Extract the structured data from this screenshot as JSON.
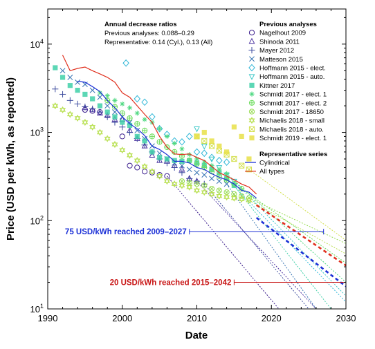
{
  "chart_data": {
    "type": "scatter",
    "xlabel": "Date",
    "ylabel": "Price (USD per kWh, as reported)",
    "xlim": [
      1990,
      2030
    ],
    "ylim": [
      10,
      25000
    ],
    "y_scale": "log",
    "x_ticks": [
      "1990",
      "2000",
      "2010",
      "2020",
      "2030"
    ],
    "y_ticks": [
      {
        "value": 10,
        "base": "10",
        "exp": "1"
      },
      {
        "value": 100,
        "base": "10",
        "exp": "2"
      },
      {
        "value": 1000,
        "base": "10",
        "exp": "3"
      },
      {
        "value": 10000,
        "base": "10",
        "exp": "4"
      }
    ],
    "annotation": {
      "title": "Annual decrease ratios",
      "line1": "Previous analyses: 0.088–0.29",
      "line2": "Representative: 0.14 (Cyl.), 0.13 (All)"
    },
    "legend": {
      "placement": "top-right",
      "previous_title": "Previous analyses",
      "representative_title": "Representative series",
      "previous": [
        {
          "name": "Nagelhout 2009",
          "marker": "circle",
          "color": "#3a1c8c"
        },
        {
          "name": "Shinoda 2011",
          "marker": "triangle",
          "color": "#472d9e"
        },
        {
          "name": "Mayer 2012",
          "marker": "plus",
          "color": "#3b4a9e"
        },
        {
          "name": "Matteson 2015",
          "marker": "x",
          "color": "#2f6fb0"
        },
        {
          "name": "Hoffmann 2015 - elect.",
          "marker": "diamond",
          "color": "#33b8d8"
        },
        {
          "name": "Hoffmann 2015 - auto.",
          "marker": "tri-down",
          "color": "#3cc8c8"
        },
        {
          "name": "Kittner 2017",
          "marker": "square",
          "color": "#3fd0a8"
        },
        {
          "name": "Schmidt 2017 - elect. 1",
          "marker": "asterisk",
          "color": "#4ed880"
        },
        {
          "name": "Schmidt 2017 - elect. 2",
          "marker": "circle-plus",
          "color": "#6cdc5c"
        },
        {
          "name": "Schmidt 2017 - 18650",
          "marker": "circle-x",
          "color": "#96dc50"
        },
        {
          "name": "Michaelis 2018 - small",
          "marker": "star6",
          "color": "#b8e050"
        },
        {
          "name": "Michaelis 2018 - auto.",
          "marker": "square-x",
          "color": "#d4e050"
        },
        {
          "name": "Schmidt 2019 - elect. 1",
          "marker": "square",
          "color": "#e8e048"
        }
      ],
      "representative": [
        {
          "name": "Cylindrical",
          "color": "#1a2fd6"
        },
        {
          "name": "All types",
          "color": "#e0301e"
        }
      ]
    },
    "range_labels": [
      {
        "text": "75 USD/kWh reached 2009–2027",
        "color": "#1a2fd6",
        "y": 75,
        "x_from": 2009,
        "x_to": 2027
      },
      {
        "text": "20 USD/kWh reached 2015–2042",
        "color": "#c81414",
        "y": 20,
        "x_from": 2015,
        "x_to": 2030
      }
    ],
    "series": [
      {
        "name": "Cylindrical",
        "color": "#1a2fd6",
        "x": [
          1994,
          1995,
          1996,
          1997,
          1998,
          1999,
          2000,
          2001,
          2002,
          2003,
          2004,
          2005,
          2006,
          2007,
          2008,
          2009,
          2010,
          2011,
          2012,
          2013,
          2014,
          2015,
          2016,
          2017,
          2018
        ],
        "y": [
          3800,
          3700,
          3300,
          2900,
          2300,
          1900,
          1500,
          1250,
          1100,
          920,
          700,
          640,
          560,
          470,
          470,
          450,
          400,
          380,
          340,
          310,
          290,
          260,
          220,
          210,
          180
        ]
      },
      {
        "name": "All types",
        "color": "#e0301e",
        "x": [
          1992,
          1993,
          1994,
          1995,
          1996,
          1997,
          1998,
          1999,
          2000,
          2001,
          2002,
          2003,
          2004,
          2005,
          2006,
          2007,
          2008,
          2009,
          2010,
          2011,
          2012,
          2013,
          2014,
          2015,
          2016,
          2017,
          2018
        ],
        "y": [
          7500,
          5000,
          5300,
          5500,
          5000,
          4600,
          4200,
          3700,
          2800,
          2500,
          2000,
          1600,
          1300,
          900,
          680,
          570,
          560,
          570,
          520,
          480,
          410,
          350,
          320,
          290,
          260,
          240,
          200
        ]
      },
      {
        "name": "Cylindrical projection",
        "color": "#1a2fd6",
        "dashed": true,
        "x": [
          2018,
          2030
        ],
        "y": [
          108,
          18
        ]
      },
      {
        "name": "All types projection",
        "color": "#e0301e",
        "dashed": true,
        "x": [
          2018,
          2030
        ],
        "y": [
          150,
          31
        ]
      },
      {
        "name": "Nagelhout 2009",
        "color": "#3a1c8c",
        "marker": "circle",
        "x": [
          1995,
          1996,
          1997,
          2000,
          2001,
          2002,
          2003,
          2004,
          2005,
          2006
        ],
        "y": [
          1800,
          1750,
          1700,
          900,
          420,
          400,
          360,
          350,
          330,
          320
        ]
      },
      {
        "name": "Shinoda 2011",
        "color": "#472d9e",
        "marker": "triangle",
        "x": [
          1995,
          1996,
          1997,
          1998,
          1999,
          2000,
          2001,
          2002,
          2003,
          2004,
          2005,
          2006,
          2007,
          2008,
          2009,
          2010
        ],
        "y": [
          1900,
          1800,
          1650,
          1550,
          1400,
          1400,
          1050,
          850,
          700,
          550,
          480,
          470,
          420,
          380,
          300,
          280
        ]
      },
      {
        "name": "Mayer 2012",
        "color": "#3b4a9e",
        "marker": "plus",
        "x": [
          1991,
          1992,
          1993,
          1994,
          1995,
          1996,
          1997,
          1998,
          1999,
          2000,
          2001,
          2002,
          2003,
          2004,
          2005,
          2006,
          2007,
          2008,
          2009,
          2010,
          2011
        ],
        "y": [
          3100,
          2700,
          2300,
          2100,
          1950,
          1850,
          1700,
          1500,
          1300,
          1150,
          1000,
          850,
          720,
          600,
          500,
          450,
          400,
          350,
          300,
          280,
          260
        ]
      },
      {
        "name": "Matteson 2015",
        "color": "#2f6fb0",
        "marker": "x",
        "x": [
          1992,
          1993,
          1994,
          1995,
          1996,
          1997,
          1998,
          1999,
          2000,
          2001,
          2002,
          2003,
          2004,
          2005,
          2006,
          2007,
          2008,
          2009,
          2010,
          2011,
          2012,
          2013,
          2014
        ],
        "y": [
          5000,
          4200,
          3700,
          3500,
          3000,
          2500,
          2000,
          1700,
          1500,
          1300,
          1050,
          850,
          700,
          580,
          500,
          450,
          420,
          380,
          350,
          330,
          300,
          280,
          260
        ]
      },
      {
        "name": "Hoffmann 2015 - elect.",
        "color": "#33b8d8",
        "marker": "diamond",
        "x": [
          2000.5,
          2002,
          2003,
          2004,
          2005,
          2006,
          2007,
          2008,
          2009,
          2010,
          2011,
          2012,
          2013,
          2014
        ],
        "y": [
          6100,
          2400,
          2200,
          1500,
          1100,
          950,
          800,
          780,
          900,
          600,
          580,
          520,
          480,
          460
        ]
      },
      {
        "name": "Hoffmann 2015 - auto.",
        "color": "#3cc8c8",
        "marker": "tri-down",
        "x": [
          2010,
          2011,
          2012,
          2013,
          2014,
          2015
        ],
        "y": [
          1100,
          700,
          500,
          400,
          330,
          280
        ]
      },
      {
        "name": "Kittner 2017",
        "color": "#3fd0a8",
        "marker": "square",
        "x": [
          1991,
          1992,
          1993,
          1994,
          1995,
          1996,
          1997,
          1998,
          1999,
          2000,
          2001,
          2002,
          2003,
          2004,
          2005,
          2006,
          2007,
          2008,
          2009,
          2010,
          2011,
          2012,
          2013,
          2014,
          2015
        ],
        "y": [
          5400,
          4200,
          3400,
          3000,
          2700,
          2400,
          2000,
          1700,
          1500,
          1300,
          1200,
          900,
          800,
          600,
          520,
          500,
          480,
          470,
          480,
          450,
          420,
          380,
          350,
          300,
          250
        ]
      },
      {
        "name": "Schmidt 2017 - elect. 1",
        "color": "#4ed880",
        "marker": "asterisk",
        "x": [
          1997,
          1998,
          1999,
          2000,
          2001,
          2002,
          2003,
          2004,
          2005,
          2006,
          2007,
          2008,
          2009,
          2010,
          2011,
          2012,
          2013,
          2014
        ],
        "y": [
          2800,
          2600,
          2300,
          2100,
          1900,
          1650,
          1400,
          1300,
          1100,
          900,
          750,
          650,
          560,
          500,
          460,
          420,
          380,
          340
        ]
      },
      {
        "name": "Schmidt 2017 - elect. 2",
        "color": "#6cdc5c",
        "marker": "circle-plus",
        "x": [
          1998,
          1999,
          2000,
          2001,
          2002,
          2003,
          2004,
          2005,
          2006,
          2007,
          2008,
          2009,
          2010,
          2011,
          2012,
          2013,
          2014,
          2015,
          2016
        ],
        "y": [
          2300,
          1950,
          1650,
          1450,
          1250,
          1050,
          900,
          780,
          680,
          600,
          540,
          480,
          440,
          400,
          360,
          320,
          290,
          260,
          230
        ]
      },
      {
        "name": "Schmidt 2017 - 18650",
        "color": "#96dc50",
        "marker": "circle-x",
        "x": [
          2008,
          2009,
          2010,
          2011,
          2012,
          2013,
          2014,
          2015,
          2016,
          2017
        ],
        "y": [
          280,
          270,
          260,
          250,
          230,
          220,
          210,
          200,
          190,
          180
        ]
      },
      {
        "name": "Michaelis 2018 - small",
        "color": "#b8e050",
        "marker": "star6",
        "x": [
          1991,
          1992,
          1993,
          1994,
          1995,
          1996,
          1997,
          1998,
          1999,
          2000,
          2001,
          2002,
          2003,
          2004,
          2005,
          2006,
          2007,
          2008,
          2009,
          2010,
          2011,
          2012,
          2013,
          2014,
          2015,
          2016,
          2017
        ],
        "y": [
          2000,
          1800,
          1600,
          1450,
          1300,
          1150,
          1000,
          850,
          730,
          630,
          550,
          480,
          410,
          360,
          320,
          280,
          260,
          250,
          240,
          220,
          210,
          200,
          190,
          185,
          180,
          175,
          170
        ]
      },
      {
        "name": "Michaelis 2018 - auto.",
        "color": "#d4e050",
        "marker": "square-x",
        "x": [
          2010,
          2011,
          2012,
          2013,
          2014,
          2015,
          2016,
          2017
        ],
        "y": [
          900,
          800,
          700,
          620,
          560,
          500,
          420,
          380
        ]
      },
      {
        "name": "Schmidt 2019 - elect. 1",
        "color": "#e8e048",
        "marker": "square",
        "x": [
          2010,
          2011,
          2012,
          2013,
          2014,
          2015,
          2016,
          2017
        ],
        "y": [
          900,
          1000,
          800,
          700,
          600,
          1150,
          900,
          500
        ]
      },
      {
        "name": "Previous analyses projections",
        "dashed": true,
        "color": "#7a7acc",
        "lines": [
          {
            "color": "#3a1c8c",
            "x": [
              2006,
              2021
            ],
            "y": [
              320,
              10
            ]
          },
          {
            "color": "#472d9e",
            "x": [
              2010,
              2026
            ],
            "y": [
              280,
              10
            ]
          },
          {
            "color": "#3b4a9e",
            "x": [
              2011,
              2025
            ],
            "y": [
              260,
              10
            ]
          },
          {
            "color": "#2f6fb0",
            "x": [
              2014,
              2026
            ],
            "y": [
              260,
              10
            ]
          },
          {
            "color": "#33b8d8",
            "x": [
              2014,
              2030
            ],
            "y": [
              300,
              12
            ]
          },
          {
            "color": "#3cc8c8",
            "x": [
              2015,
              2030
            ],
            "y": [
              280,
              14
            ]
          },
          {
            "color": "#3fd0a8",
            "x": [
              2015,
              2028
            ],
            "y": [
              250,
              10
            ]
          },
          {
            "color": "#4ed880",
            "x": [
              2014,
              2030
            ],
            "y": [
              340,
              20
            ]
          },
          {
            "color": "#6cdc5c",
            "x": [
              2016,
              2030
            ],
            "y": [
              230,
              33
            ]
          },
          {
            "color": "#96dc50",
            "x": [
              2017,
              2030
            ],
            "y": [
              180,
              55
            ]
          },
          {
            "color": "#b8e050",
            "x": [
              2017,
              2030
            ],
            "y": [
              170,
              42
            ]
          },
          {
            "color": "#d4e050",
            "x": [
              2017,
              2030
            ],
            "y": [
              380,
              60
            ]
          }
        ]
      }
    ]
  }
}
